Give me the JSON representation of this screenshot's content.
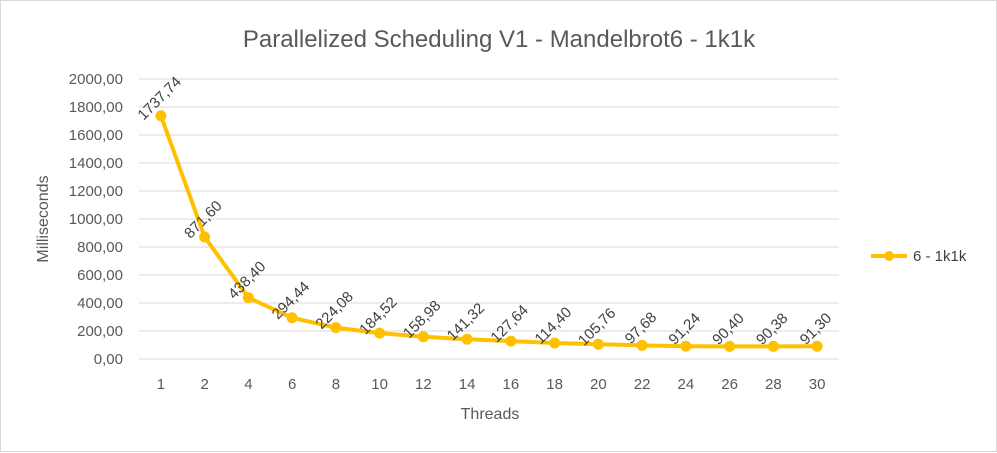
{
  "chart_data": {
    "type": "line",
    "title": "Parallelized Scheduling V1 - Mandelbrot6 - 1k1k",
    "xlabel": "Threads",
    "ylabel": "Milliseconds",
    "categories": [
      "1",
      "2",
      "4",
      "6",
      "8",
      "10",
      "12",
      "14",
      "16",
      "18",
      "20",
      "22",
      "24",
      "26",
      "28",
      "30"
    ],
    "series": [
      {
        "name": "6 - 1k1k",
        "color": "#ffc000",
        "values": [
          1737.74,
          871.6,
          438.4,
          294.44,
          224.08,
          184.52,
          158.98,
          141.32,
          127.64,
          114.4,
          105.76,
          97.68,
          91.24,
          90.4,
          90.38,
          91.3
        ],
        "labels": [
          "1737,74",
          "871,60",
          "438,40",
          "294,44",
          "224,08",
          "184,52",
          "158,98",
          "141,32",
          "127,64",
          "114,40",
          "105,76",
          "97,68",
          "91,24",
          "90,40",
          "90,38",
          "91,30"
        ]
      }
    ],
    "ylim": [
      0,
      2000
    ],
    "yticks": [
      "0,00",
      "200,00",
      "400,00",
      "600,00",
      "800,00",
      "1000,00",
      "1200,00",
      "1400,00",
      "1600,00",
      "1800,00",
      "2000,00"
    ],
    "grid": true,
    "legend_position": "right"
  }
}
